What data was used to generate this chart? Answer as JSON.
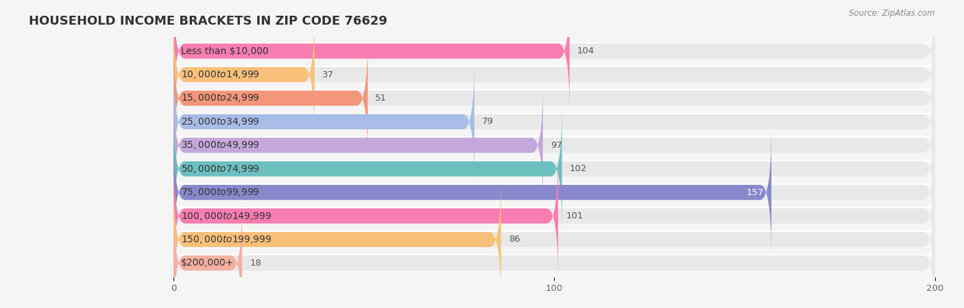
{
  "title": "HOUSEHOLD INCOME BRACKETS IN ZIP CODE 76629",
  "source": "Source: ZipAtlas.com",
  "categories": [
    "Less than $10,000",
    "$10,000 to $14,999",
    "$15,000 to $24,999",
    "$25,000 to $34,999",
    "$35,000 to $49,999",
    "$50,000 to $74,999",
    "$75,000 to $99,999",
    "$100,000 to $149,999",
    "$150,000 to $199,999",
    "$200,000+"
  ],
  "values": [
    104,
    37,
    51,
    79,
    97,
    102,
    157,
    101,
    86,
    18
  ],
  "bar_colors": [
    "#f87db0",
    "#f9c07a",
    "#f4967a",
    "#a8bce8",
    "#c4a8dc",
    "#6dbfbf",
    "#8888cc",
    "#f87db0",
    "#f9c07a",
    "#f4b0a0"
  ],
  "xlim": [
    0,
    200
  ],
  "xticks": [
    0,
    100,
    200
  ],
  "background_color": "#f5f5f5",
  "bar_bg_color": "#e8e8e8",
  "title_fontsize": 13,
  "label_fontsize": 10,
  "value_fontsize": 9.5,
  "bar_height": 0.62
}
